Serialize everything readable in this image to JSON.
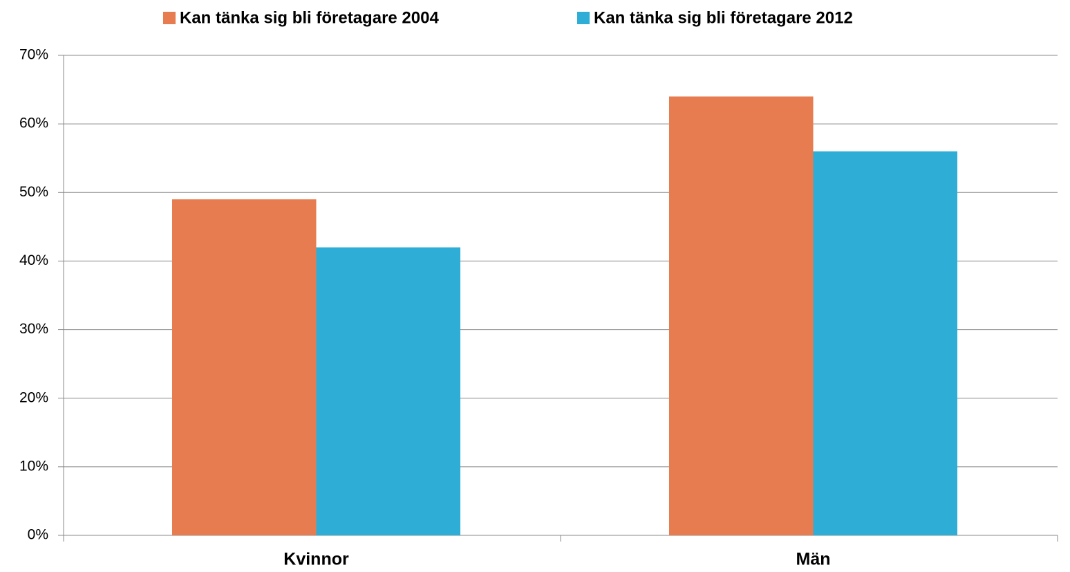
{
  "chart_data": {
    "type": "bar",
    "categories": [
      "Kvinnor",
      "Män"
    ],
    "series": [
      {
        "name": "Kan tänka sig bli företagare 2004",
        "color": "#e67c50",
        "values": [
          49,
          64
        ]
      },
      {
        "name": "Kan tänka sig bli företagare 2012",
        "color": "#2eaed6",
        "values": [
          42,
          56
        ]
      }
    ],
    "ylim": [
      0,
      70
    ],
    "yticks": [
      {
        "value": 0,
        "label": "0%"
      },
      {
        "value": 10,
        "label": "10%"
      },
      {
        "value": 20,
        "label": "20%"
      },
      {
        "value": 30,
        "label": "30%"
      },
      {
        "value": 40,
        "label": "40%"
      },
      {
        "value": 50,
        "label": "50%"
      },
      {
        "value": 60,
        "label": "60%"
      },
      {
        "value": 70,
        "label": "70%"
      }
    ],
    "grid": true,
    "legend": "top"
  }
}
